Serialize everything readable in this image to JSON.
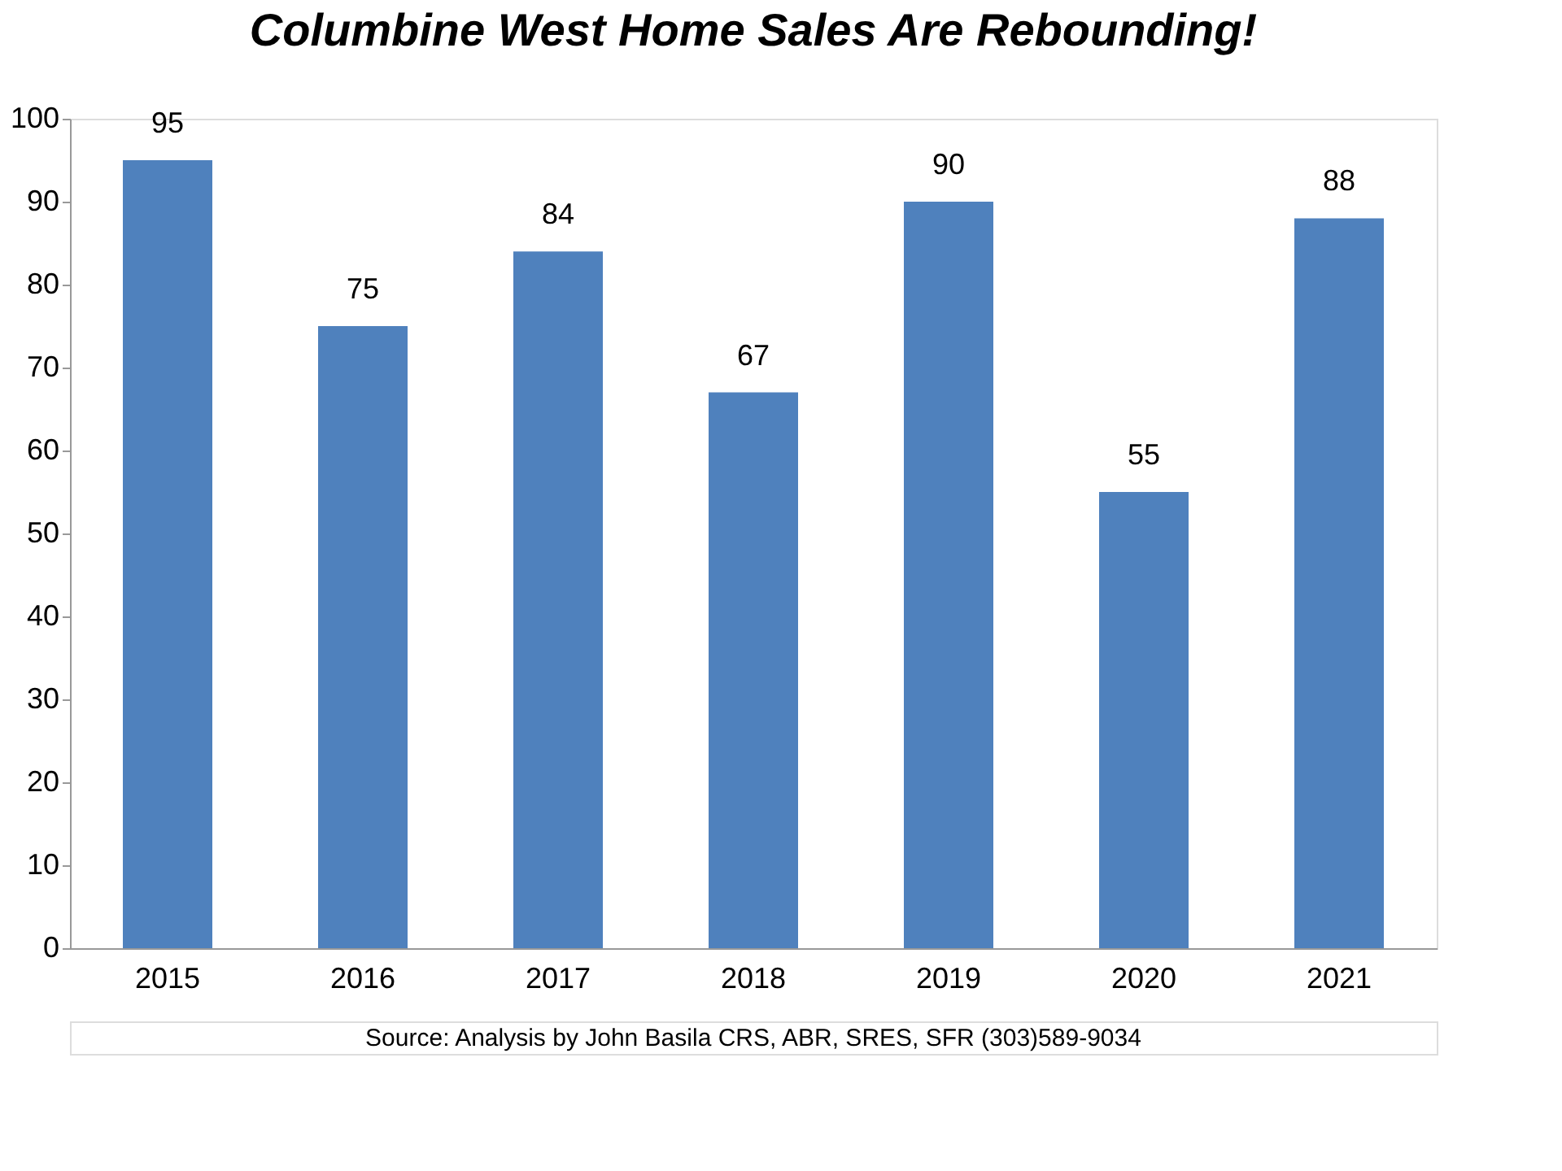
{
  "chart_data": {
    "type": "bar",
    "title": "Columbine West Home Sales Are Rebounding!",
    "categories": [
      "2015",
      "2016",
      "2017",
      "2018",
      "2019",
      "2020",
      "2021"
    ],
    "values": [
      95,
      75,
      84,
      67,
      90,
      55,
      88
    ],
    "color": "#4f81bd",
    "ylim": [
      0,
      100
    ],
    "yticks": [
      0,
      10,
      20,
      30,
      40,
      50,
      60,
      70,
      80,
      90,
      100
    ],
    "grid": false,
    "data_labels": true,
    "annotations": [
      "Source: Analysis by John Basila  CRS, ABR, SRES, SFR  (303)589-9034"
    ]
  }
}
